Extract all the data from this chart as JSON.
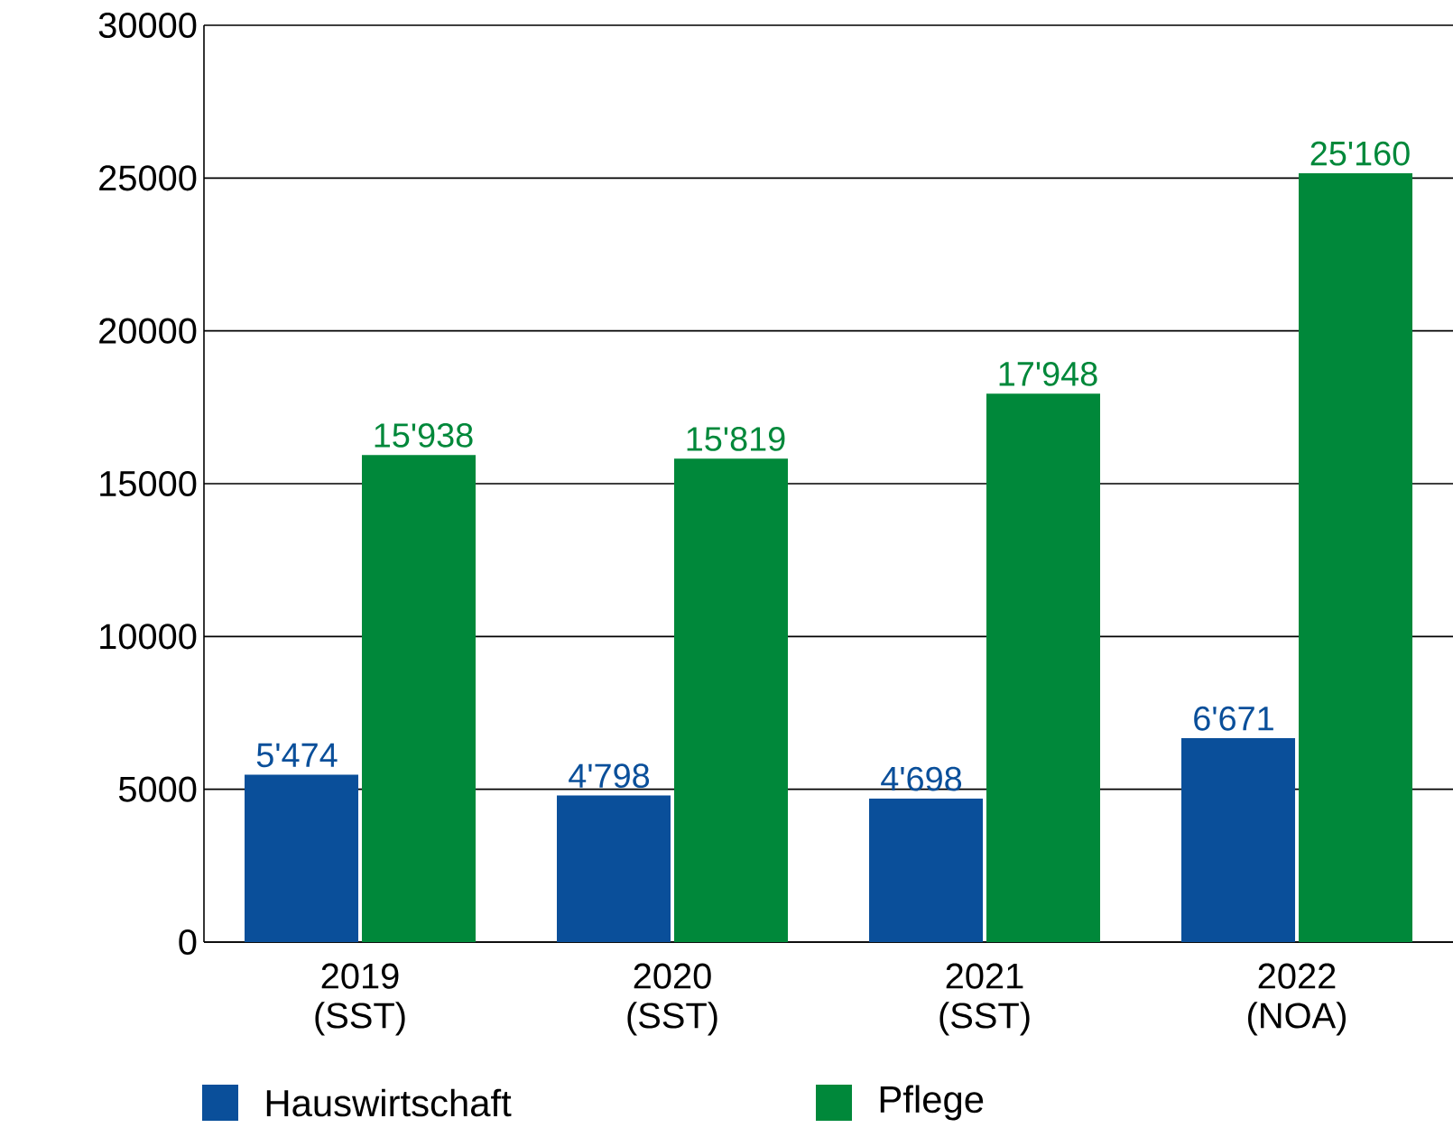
{
  "chart_data": {
    "type": "bar",
    "categories": [
      "2019 (SST)",
      "2020 (SST)",
      "2021 (SST)",
      "2022 (NOA)"
    ],
    "series": [
      {
        "name": "Hauswirtschaft",
        "color": "#0a4f9a",
        "values": [
          5474,
          4798,
          4698,
          6671
        ],
        "value_labels": [
          "5'474",
          "4'798",
          "4'698",
          "6'671"
        ]
      },
      {
        "name": "Pflege",
        "color": "#00883a",
        "values": [
          15938,
          15819,
          17948,
          25160
        ],
        "value_labels": [
          "15'938",
          "15'819",
          "17'948",
          "25'160"
        ]
      }
    ],
    "ylim": [
      0,
      30000
    ],
    "yticks": [
      0,
      5000,
      10000,
      15000,
      20000,
      25000,
      30000
    ],
    "grid": "y",
    "legend": "bottom"
  }
}
